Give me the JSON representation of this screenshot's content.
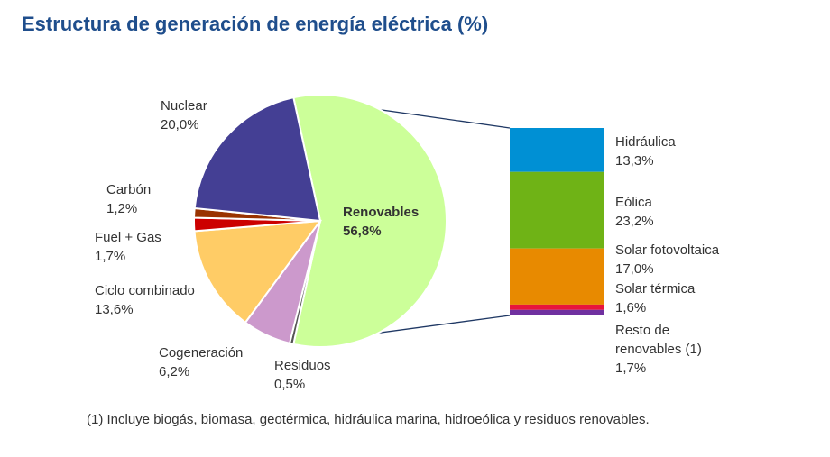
{
  "title": "Estructura de generación de energía eléctrica (%)",
  "footnote": "(1) Incluye biogás, biomasa, geotérmica, hidráulica marina, hidroeólica y residuos renovables.",
  "chart_data": {
    "type": "pie",
    "title": "Estructura de generación de energía eléctrica (%)",
    "slices": [
      {
        "label": "Renovables",
        "value": 56.8,
        "value_label": "56,8%",
        "color": "#ccff99"
      },
      {
        "label": "Residuos",
        "value": 0.5,
        "value_label": "0,5%",
        "color": "#555555"
      },
      {
        "label": "Cogeneración",
        "value": 6.2,
        "value_label": "6,2%",
        "color": "#cc99cc"
      },
      {
        "label": "Ciclo combinado",
        "value": 13.6,
        "value_label": "13,6%",
        "color": "#ffcc66"
      },
      {
        "label": "Fuel + Gas",
        "value": 1.7,
        "value_label": "1,7%",
        "color": "#cc0000"
      },
      {
        "label": "Carbón",
        "value": 1.2,
        "value_label": "1,2%",
        "color": "#993300"
      },
      {
        "label": "Nuclear",
        "value": 20.0,
        "value_label": "20,0%",
        "color": "#443f94"
      }
    ],
    "breakdown": {
      "of": "Renovables",
      "type": "stacked-bar",
      "segments": [
        {
          "label": "Hidráulica",
          "value": 13.3,
          "value_label": "13,3%",
          "color": "#0090d4"
        },
        {
          "label": "Eólica",
          "value": 23.2,
          "value_label": "23,2%",
          "color": "#6fb316"
        },
        {
          "label": "Solar fotovoltaica",
          "value": 17.0,
          "value_label": "17,0%",
          "color": "#e88a00"
        },
        {
          "label": "Solar térmica",
          "value": 1.6,
          "value_label": "1,6%",
          "color": "#e8143c"
        },
        {
          "label": "Resto de renovables (1)",
          "value": 1.7,
          "value_label": "1,7%",
          "color": "#7030a0"
        }
      ]
    }
  }
}
